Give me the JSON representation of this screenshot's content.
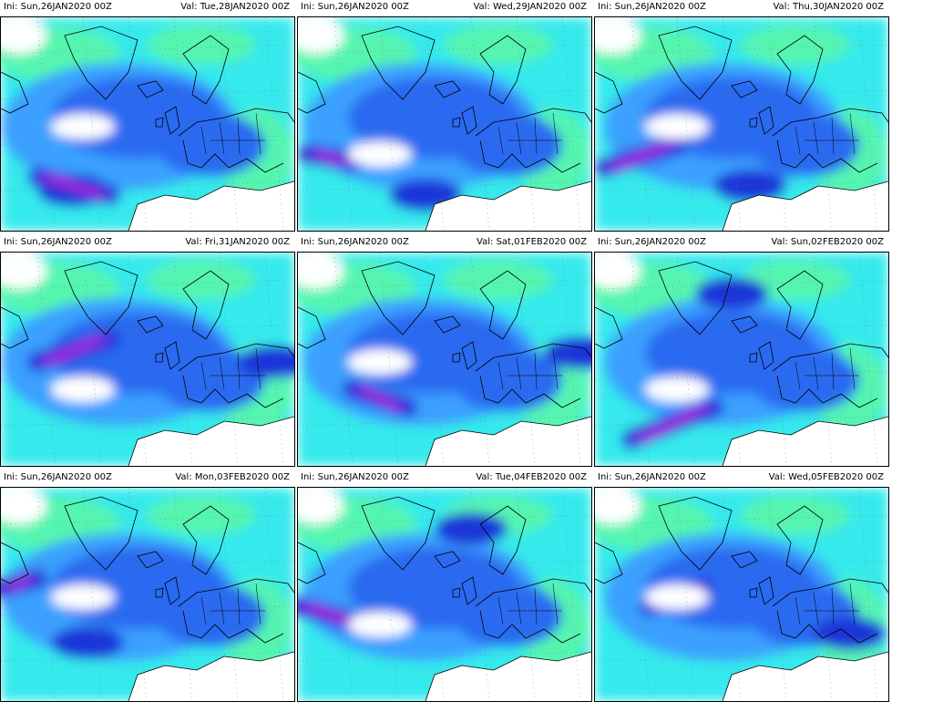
{
  "colors": {
    "cyan": "#34e9ec",
    "green": "#55f5b0",
    "blue_light": "#3aa0ff",
    "blue": "#2a6bf0",
    "blue_dark": "#1f35d8",
    "violet": "#7a28e0",
    "magenta": "#d020e0",
    "land": "#ffffff",
    "outline": "#000000"
  },
  "panels": [
    {
      "ini": "Ini: Sun,26JAN2020 00Z",
      "val": "Val: Tue,28JAN2020 00Z"
    },
    {
      "ini": "Ini: Sun,26JAN2020 00Z",
      "val": "Val: Wed,29JAN2020 00Z"
    },
    {
      "ini": "Ini: Sun,26JAN2020 00Z",
      "val": "Val: Thu,30JAN2020 00Z"
    },
    {
      "ini": "Ini: Sun,26JAN2020 00Z",
      "val": "Val: Fri,31JAN2020 00Z"
    },
    {
      "ini": "Ini: Sun,26JAN2020 00Z",
      "val": "Val: Sat,01FEB2020 00Z"
    },
    {
      "ini": "Ini: Sun,26JAN2020 00Z",
      "val": "Val: Sun,02FEB2020 00Z"
    },
    {
      "ini": "Ini: Sun,26JAN2020 00Z",
      "val": "Val: Mon,03FEB2020 00Z"
    },
    {
      "ini": "Ini: Sun,26JAN2020 00Z",
      "val": "Val: Tue,04FEB2020 00Z"
    },
    {
      "ini": "Ini: Sun,26JAN2020 00Z",
      "val": "Val: Wed,05FEB2020 00Z"
    }
  ]
}
